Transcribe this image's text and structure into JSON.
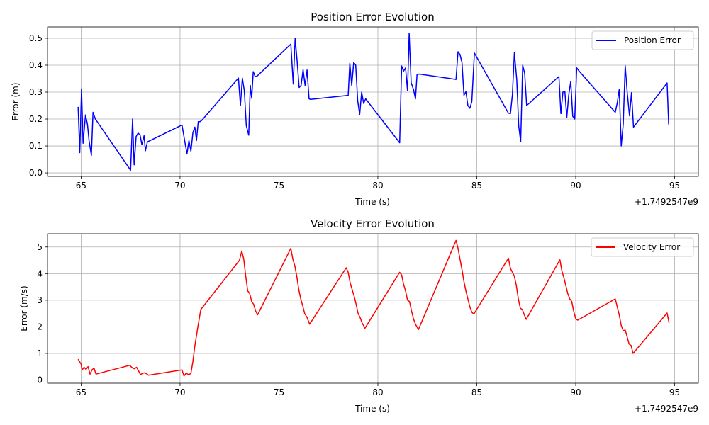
{
  "chart_data": [
    {
      "type": "line",
      "title": "Position Error Evolution",
      "xlabel": "Time (s)",
      "ylabel": "Error (m)",
      "x_offset_label": "+1.7492547e9",
      "xlim": [
        63.3,
        96.2
      ],
      "ylim": [
        -0.013,
        0.542
      ],
      "xticks": [
        65,
        70,
        75,
        80,
        85,
        90,
        95
      ],
      "yticks": [
        0.0,
        0.1,
        0.2,
        0.3,
        0.4,
        0.5
      ],
      "ytick_labels": [
        "0.0",
        "0.1",
        "0.2",
        "0.3",
        "0.4",
        "0.5"
      ],
      "grid": true,
      "legend_position": "upper right",
      "series": [
        {
          "name": "Position Error",
          "color": "#0000ff",
          "x": [
            64.85,
            64.93,
            65.02,
            65.1,
            65.22,
            65.32,
            65.4,
            65.52,
            65.6,
            65.72,
            67.5,
            67.6,
            67.68,
            67.78,
            67.88,
            67.98,
            68.07,
            68.18,
            68.25,
            68.35,
            70.1,
            70.25,
            70.35,
            70.45,
            70.55,
            70.65,
            70.75,
            70.83,
            70.92,
            71.0,
            71.1,
            72.95,
            73.05,
            73.15,
            73.25,
            73.35,
            73.47,
            73.55,
            73.62,
            73.7,
            73.8,
            73.9,
            75.6,
            75.72,
            75.82,
            75.92,
            76.02,
            76.12,
            76.22,
            76.32,
            76.42,
            76.52,
            76.6,
            78.5,
            78.58,
            78.68,
            78.78,
            78.88,
            78.98,
            79.08,
            79.18,
            79.28,
            79.38,
            81.1,
            81.2,
            81.3,
            81.4,
            81.5,
            81.58,
            81.68,
            81.8,
            81.9,
            81.98,
            82.08,
            83.95,
            84.05,
            84.15,
            84.25,
            84.35,
            84.45,
            84.55,
            84.65,
            84.75,
            84.88,
            86.6,
            86.7,
            86.8,
            86.9,
            87.02,
            87.12,
            87.22,
            87.32,
            87.42,
            87.52,
            89.15,
            89.25,
            89.35,
            89.45,
            89.55,
            89.65,
            89.75,
            89.85,
            89.95,
            90.05,
            90.15,
            92.0,
            92.1,
            92.2,
            92.3,
            92.4,
            92.5,
            92.6,
            92.72,
            92.82,
            92.92,
            94.62,
            94.7
          ],
          "y": [
            0.245,
            0.075,
            0.312,
            0.11,
            0.215,
            0.18,
            0.12,
            0.065,
            0.225,
            0.2,
            0.01,
            0.2,
            0.03,
            0.135,
            0.148,
            0.14,
            0.105,
            0.138,
            0.082,
            0.115,
            0.178,
            0.113,
            0.07,
            0.12,
            0.08,
            0.15,
            0.17,
            0.12,
            0.19,
            0.19,
            0.195,
            0.352,
            0.25,
            0.352,
            0.305,
            0.175,
            0.14,
            0.325,
            0.277,
            0.376,
            0.357,
            0.36,
            0.478,
            0.33,
            0.5,
            0.415,
            0.317,
            0.325,
            0.383,
            0.325,
            0.382,
            0.275,
            0.273,
            0.288,
            0.407,
            0.325,
            0.41,
            0.4,
            0.268,
            0.217,
            0.3,
            0.258,
            0.275,
            0.112,
            0.397,
            0.378,
            0.39,
            0.305,
            0.518,
            0.335,
            0.31,
            0.275,
            0.365,
            0.367,
            0.347,
            0.45,
            0.44,
            0.41,
            0.288,
            0.302,
            0.25,
            0.24,
            0.265,
            0.445,
            0.222,
            0.22,
            0.29,
            0.446,
            0.345,
            0.175,
            0.115,
            0.4,
            0.37,
            0.25,
            0.358,
            0.22,
            0.3,
            0.302,
            0.205,
            0.29,
            0.34,
            0.21,
            0.2,
            0.39,
            0.38,
            0.225,
            0.26,
            0.31,
            0.1,
            0.18,
            0.398,
            0.3,
            0.212,
            0.298,
            0.17,
            0.334,
            0.18
          ]
        }
      ]
    },
    {
      "type": "line",
      "title": "Velocity Error Evolution",
      "xlabel": "Time (s)",
      "ylabel": "Error (m/s)",
      "x_offset_label": "+1.7492547e9",
      "xlim": [
        63.3,
        96.2
      ],
      "ylim": [
        -0.12,
        5.5
      ],
      "xticks": [
        65,
        70,
        75,
        80,
        85,
        90,
        95
      ],
      "yticks": [
        0,
        1,
        2,
        3,
        4,
        5
      ],
      "ytick_labels": [
        "0",
        "1",
        "2",
        "3",
        "4",
        "5"
      ],
      "grid": true,
      "legend_position": "upper right",
      "series": [
        {
          "name": "Velocity Error",
          "color": "#ff0000",
          "x": [
            64.85,
            65.0,
            65.05,
            65.15,
            65.25,
            65.35,
            65.45,
            65.55,
            65.65,
            65.75,
            67.45,
            67.6,
            67.7,
            67.8,
            67.9,
            68.0,
            68.1,
            68.2,
            68.3,
            68.4,
            70.1,
            70.2,
            70.3,
            70.45,
            70.55,
            70.65,
            70.75,
            70.9,
            71.05,
            73.0,
            73.12,
            73.22,
            73.32,
            73.42,
            73.52,
            73.62,
            73.72,
            73.82,
            73.92,
            75.6,
            75.7,
            75.8,
            75.9,
            76.0,
            76.1,
            76.2,
            76.3,
            76.42,
            76.55,
            78.4,
            78.5,
            78.6,
            78.7,
            78.8,
            78.9,
            79.0,
            79.1,
            79.2,
            79.35,
            81.1,
            81.2,
            81.3,
            81.4,
            81.5,
            81.6,
            81.7,
            81.8,
            81.9,
            82.05,
            83.95,
            84.05,
            84.15,
            84.25,
            84.35,
            84.45,
            84.55,
            84.65,
            84.75,
            84.85,
            86.6,
            86.7,
            86.8,
            86.9,
            87.0,
            87.1,
            87.2,
            87.3,
            87.4,
            87.5,
            89.2,
            89.3,
            89.4,
            89.5,
            89.6,
            89.7,
            89.8,
            89.9,
            90.0,
            90.1,
            92.0,
            92.1,
            92.2,
            92.3,
            92.4,
            92.5,
            92.6,
            92.7,
            92.8,
            92.9,
            94.62,
            94.72
          ],
          "y": [
            0.78,
            0.6,
            0.38,
            0.48,
            0.4,
            0.5,
            0.22,
            0.38,
            0.45,
            0.22,
            0.55,
            0.45,
            0.42,
            0.48,
            0.35,
            0.2,
            0.25,
            0.27,
            0.24,
            0.18,
            0.38,
            0.15,
            0.25,
            0.2,
            0.25,
            0.7,
            1.3,
            2.0,
            2.65,
            4.5,
            4.85,
            4.55,
            3.9,
            3.35,
            3.25,
            2.95,
            2.85,
            2.6,
            2.45,
            4.95,
            4.55,
            4.3,
            3.9,
            3.4,
            3.05,
            2.8,
            2.5,
            2.35,
            2.1,
            4.22,
            4.05,
            3.65,
            3.4,
            3.15,
            2.85,
            2.5,
            2.35,
            2.15,
            1.95,
            4.05,
            3.95,
            3.6,
            3.35,
            3.0,
            2.95,
            2.6,
            2.3,
            2.1,
            1.9,
            5.25,
            4.95,
            4.55,
            4.15,
            3.7,
            3.35,
            3.05,
            2.75,
            2.55,
            2.48,
            4.58,
            4.2,
            4.05,
            3.9,
            3.55,
            3.05,
            2.7,
            2.65,
            2.45,
            2.28,
            4.52,
            4.1,
            3.85,
            3.55,
            3.25,
            3.05,
            2.95,
            2.58,
            2.3,
            2.25,
            3.05,
            2.75,
            2.45,
            2.05,
            1.85,
            1.88,
            1.62,
            1.35,
            1.3,
            1.0,
            2.52,
            2.15
          ]
        }
      ]
    }
  ]
}
